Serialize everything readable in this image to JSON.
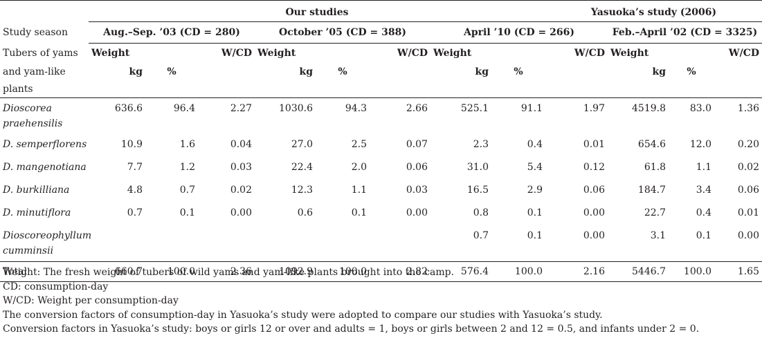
{
  "header": {
    "our_studies": "Our studies",
    "yasuoka_study": "Yasuoka’s study (2006)",
    "study_season_label": "Study season",
    "seasons": [
      "Aug.–Sep. ’03 (CD = 280)",
      "October ’05 (CD = 388)",
      "April ’10 (CD = 266)",
      "Feb.–April ’02 (CD = 3325)"
    ],
    "row_label_line1": "Tubers of yams",
    "row_label_line2": "and  yam-like",
    "row_label_line3": "plants",
    "weight": "Weight",
    "wcd": "W/CD",
    "kg": "kg",
    "pct": "%"
  },
  "rows": [
    {
      "name1": "Dioscorea",
      "name2": "praehensilis",
      "v": [
        "636.6",
        "96.4",
        "2.27",
        "1030.6",
        "94.3",
        "2.66",
        "525.1",
        "91.1",
        "1.97",
        "4519.8",
        "83.0",
        "1.36"
      ]
    },
    {
      "name1": "D. semperflorens",
      "name2": "",
      "v": [
        "10.9",
        "1.6",
        "0.04",
        "27.0",
        "2.5",
        "0.07",
        "2.3",
        "0.4",
        "0.01",
        "654.6",
        "12.0",
        "0.20"
      ]
    },
    {
      "name1": "D. mangenotiana",
      "name2": "",
      "v": [
        "7.7",
        "1.2",
        "0.03",
        "22.4",
        "2.0",
        "0.06",
        "31.0",
        "5.4",
        "0.12",
        "61.8",
        "1.1",
        "0.02"
      ]
    },
    {
      "name1": "D. burkilliana",
      "name2": "",
      "v": [
        "4.8",
        "0.7",
        "0.02",
        "12.3",
        "1.1",
        "0.03",
        "16.5",
        "2.9",
        "0.06",
        "184.7",
        "3.4",
        "0.06"
      ]
    },
    {
      "name1": "D. minutiflora",
      "name2": "",
      "v": [
        "0.7",
        "0.1",
        "0.00",
        "0.6",
        "0.1",
        "0.00",
        "0.8",
        "0.1",
        "0.00",
        "22.7",
        "0.4",
        "0.01"
      ]
    },
    {
      "name1": "Dioscoreophyllum",
      "name2": "cumminsii",
      "v": [
        "",
        "",
        "",
        "",
        "",
        "",
        "0.7",
        "0.1",
        "0.00",
        "3.1",
        "0.1",
        "0.00"
      ]
    }
  ],
  "total": {
    "label": "Total",
    "v": [
      "660.7",
      "100.0",
      "2.36",
      "1092.9",
      "100.0",
      "2.82",
      "576.4",
      "100.0",
      "2.16",
      "5446.7",
      "100.0",
      "1.65"
    ]
  },
  "footnotes": [
    "Weight: The fresh weight of tubers of wild yams and yam-like plants brought into the camp.",
    "CD: consumption-day",
    "W/CD: Weight per consumption-day",
    "The conversion factors of consumption-day in Yasuoka’s study were adopted to compare our studies with Yasuoka’s study.",
    "Conversion factors in Yasuoka’s study: boys or girls 12 or over and adults = 1, boys or girls between 2 and 12 = 0.5, and infants under 2 = 0."
  ]
}
